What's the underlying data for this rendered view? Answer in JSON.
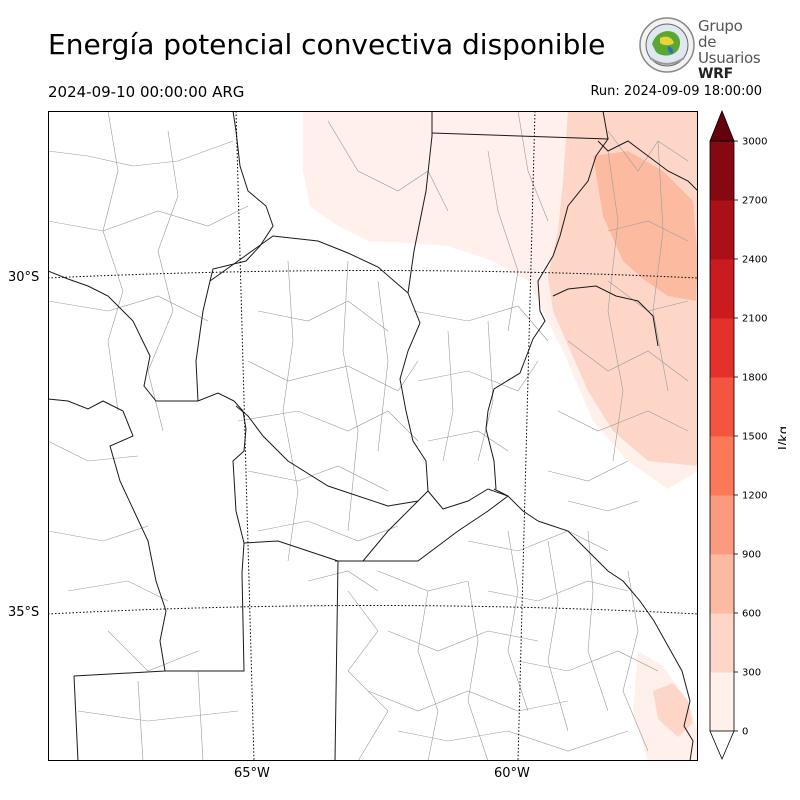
{
  "header": {
    "title": "Energía potencial convectiva disponible",
    "valid_time": "2024-09-10 00:00:00 ARG",
    "run_time": "Run: 2024-09-09 18:00:00"
  },
  "logo": {
    "line1": "Grupo de",
    "line2": "Usuarios",
    "line3": "WRF"
  },
  "map": {
    "variable": "CAPE",
    "lat_labels": [
      "30°S",
      "35°S"
    ],
    "lon_labels": [
      "65°W",
      "60°W"
    ]
  },
  "colorbar": {
    "unit": "J/kg",
    "ticks": [
      "0",
      "300",
      "600",
      "900",
      "1200",
      "1500",
      "1800",
      "2100",
      "2400",
      "2700",
      "3000"
    ],
    "colors": [
      "#fff0eb",
      "#fdd6c8",
      "#fcbba1",
      "#fc9a7f",
      "#fb7858",
      "#f45540",
      "#e5312b",
      "#ca1c1f",
      "#aa1016",
      "#860811",
      "#67000d"
    ]
  }
}
